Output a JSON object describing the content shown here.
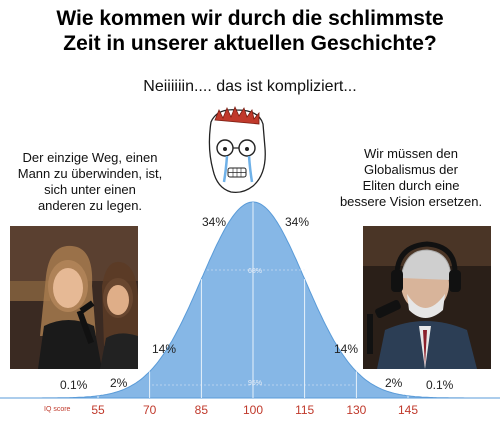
{
  "title_lines": [
    "Wie kommen wir durch die schlimmste",
    "Zeit in unserer aktuellen Geschichte?"
  ],
  "subtitle": "Neiiiiiin.... das ist kompliziert...",
  "left_quote_lines": [
    "Der einzige Weg, einen",
    "Mann zu überwinden, ist,",
    "sich unter einen",
    "anderen zu legen."
  ],
  "right_quote_lines": [
    "Wir müssen den",
    "Globalismus der",
    "Eliten durch eine",
    "bessere Vision ersetzen."
  ],
  "colors": {
    "curve_fill": "#86b7e6",
    "curve_edge": "#5a9bd8",
    "axis_labels": "#c0392b"
  },
  "chart_data": {
    "type": "area",
    "x_label": "IQ score",
    "x_ticks": [
      "55",
      "70",
      "85",
      "100",
      "115",
      "130",
      "145"
    ],
    "x_tick_values": [
      55,
      70,
      85,
      100,
      115,
      130,
      145
    ],
    "segment_percentages": [
      "0.1%",
      "2%",
      "14%",
      "34%",
      "34%",
      "14%",
      "2%",
      "0.1%"
    ],
    "inner_labels": [
      "68%",
      "95%"
    ],
    "mean": 100,
    "sd": 15
  }
}
